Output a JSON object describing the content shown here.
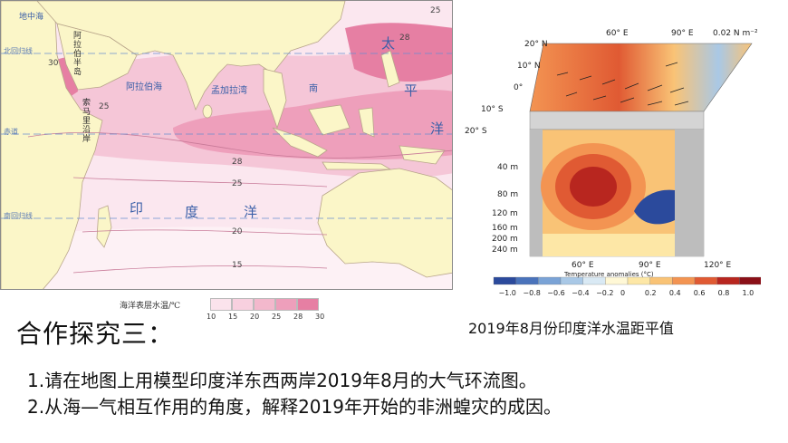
{
  "map": {
    "legend_title": "海洋表层水温/℃",
    "legend_ticks": [
      "10",
      "15",
      "20",
      "25",
      "28",
      "30"
    ],
    "legend_colors": [
      "#fbe3ec",
      "#f8d0df",
      "#f3b8cc",
      "#ee9fbb",
      "#e67fa3"
    ],
    "ocean_labels": {
      "indian_ocean": [
        "印",
        "度",
        "洋"
      ],
      "pacific": [
        "太",
        "平",
        "洋"
      ],
      "arabian_sea": "阿拉伯海",
      "bay_of_bengal": "孟加拉湾",
      "south_china_sea": "南",
      "arabian_peninsula": "阿拉伯半岛",
      "somali_coast": "索马里沿岸",
      "mediterranean": "地中海"
    },
    "latitude_lines": {
      "tropic_north": "北回归线",
      "equator": "赤道",
      "tropic_south": "南回归线"
    },
    "isotherm_labels": [
      "25",
      "28",
      "30",
      "25",
      "28",
      "25",
      "20",
      "15"
    ]
  },
  "figure": {
    "lat_labels": [
      "20° N",
      "10° N",
      "0°",
      "10° S",
      "20° S"
    ],
    "top_lon_labels": [
      "60° E",
      "90° E"
    ],
    "vector_scale": "0.02 N m⁻²",
    "depth_labels": [
      "40 m",
      "80 m",
      "120 m",
      "160 m",
      "200 m",
      "240 m"
    ],
    "bottom_lon_labels": [
      "60° E",
      "90° E",
      "120° E"
    ],
    "colorbar_title": "Temperature anomalies (°C)",
    "colorbar_ticks": [
      "−1.0",
      "−0.8",
      "−0.6",
      "−0.4",
      "−0.2",
      "0",
      "0.2",
      "0.4",
      "0.6",
      "0.8",
      "1.0"
    ],
    "colorbar_colors": [
      "#2b4a9c",
      "#4a73bb",
      "#7aa3d6",
      "#a9c8e6",
      "#d9e9f4",
      "#fff8d6",
      "#fde7a6",
      "#f9c376",
      "#f39452",
      "#e05a33",
      "#b8261f",
      "#8a0f17"
    ],
    "caption": "2019年8月份印度洋水温距平值"
  },
  "section_title": "合作探究三：",
  "tasks": [
    "1.请在地图上用模型印度洋东西两岸2019年8月的大气环流图。",
    "2.从海—气相互作用的角度，解释2019年开始的非洲蝗灾的成因。"
  ]
}
